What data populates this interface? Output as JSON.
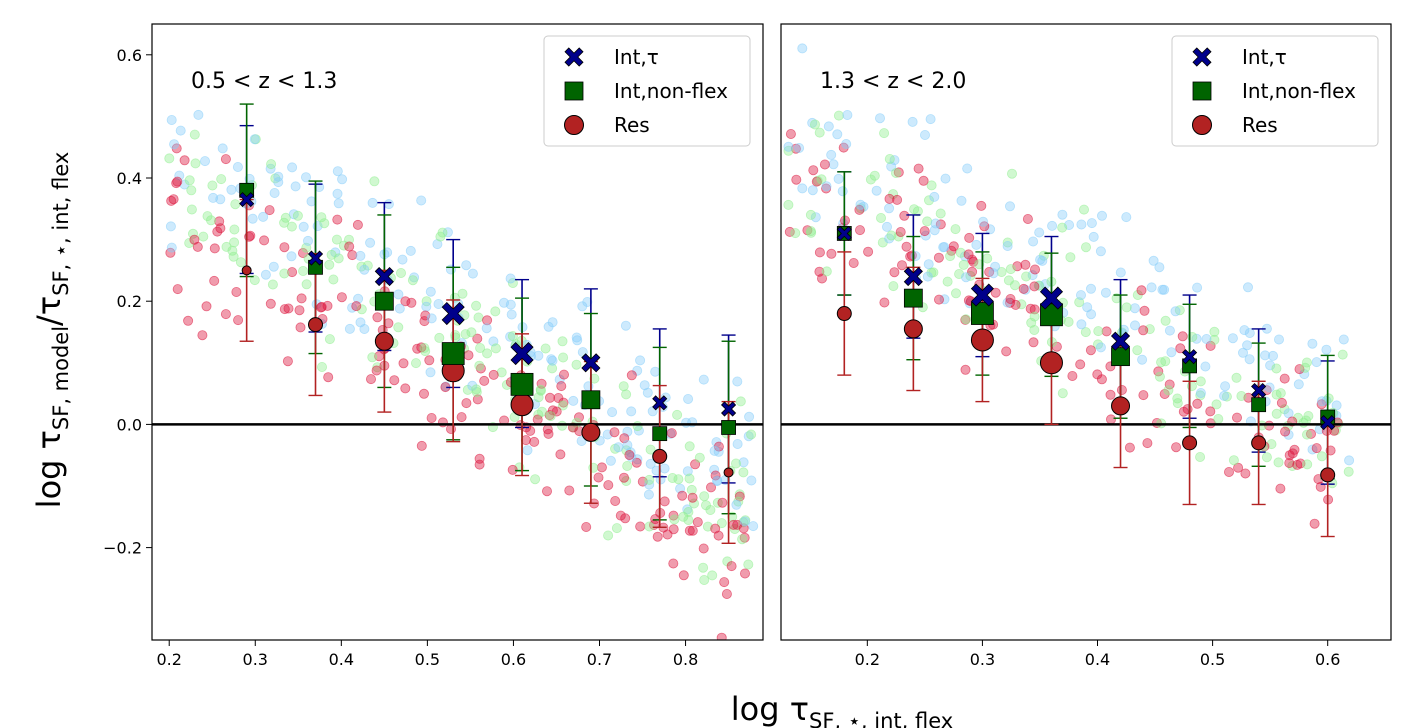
{
  "figure": {
    "ylabel_main": "log τ",
    "ylabel_sub": "SF, model",
    "ylabel_mid": "/τ",
    "ylabel_sub2": "SF, ⋆, int, flex",
    "xlabel_main": "log τ",
    "xlabel_sub": "SF, ⋆, int, flex"
  },
  "colors": {
    "int_tau": "#00008b",
    "int_nonflex": "#006400",
    "res": "#b22222",
    "scatter_blue": "#87cefa",
    "scatter_green": "#90ee90",
    "scatter_red": "#dc143c"
  },
  "chart_data": [
    {
      "type": "scatter",
      "annotation": "0.5 < z < 1.3",
      "xlim": [
        0.18,
        0.89
      ],
      "ylim": [
        -0.35,
        0.65
      ],
      "xticks": [
        0.2,
        0.3,
        0.4,
        0.5,
        0.6,
        0.7,
        0.8
      ],
      "xtick_labels": [
        "0.2",
        "0.3",
        "0.4",
        "0.5",
        "0.6",
        "0.7",
        "0.8"
      ],
      "yticks": [
        -0.2,
        0.0,
        0.2,
        0.4,
        0.6
      ],
      "ytick_labels": [
        "−0.2",
        "0.0",
        "0.2",
        "0.4",
        "0.6"
      ],
      "hline": 0.0,
      "legend": [
        "Int,τ",
        "Int,non-flex",
        "Res"
      ],
      "legend_loc": "upper right",
      "scatter_cloud": {
        "x_range": [
          0.2,
          0.88
        ],
        "y_intercept": 0.55,
        "slope": -0.78,
        "spread": 0.07,
        "n": 500
      },
      "series": [
        {
          "name": "Int,τ",
          "marker": "X",
          "x": [
            0.29,
            0.37,
            0.45,
            0.53,
            0.61,
            0.69,
            0.77,
            0.85
          ],
          "y": [
            0.365,
            0.27,
            0.24,
            0.18,
            0.115,
            0.1,
            0.035,
            0.025
          ],
          "err": [
            0.12,
            0.12,
            0.12,
            0.12,
            0.12,
            0.12,
            0.12,
            0.12
          ],
          "size": [
            1,
            1,
            2,
            3,
            3,
            2,
            1,
            1
          ]
        },
        {
          "name": "Int,non-flex",
          "marker": "s",
          "x": [
            0.29,
            0.37,
            0.45,
            0.53,
            0.61,
            0.69,
            0.77,
            0.85
          ],
          "y": [
            0.38,
            0.255,
            0.2,
            0.115,
            0.065,
            0.04,
            -0.015,
            -0.005
          ],
          "err": [
            0.14,
            0.14,
            0.14,
            0.14,
            0.14,
            0.14,
            0.14,
            0.14
          ],
          "size": [
            1,
            1,
            2,
            3,
            3,
            2,
            1,
            1
          ]
        },
        {
          "name": "Res",
          "marker": "o",
          "x": [
            0.29,
            0.37,
            0.45,
            0.53,
            0.61,
            0.69,
            0.77,
            0.85
          ],
          "y": [
            0.25,
            0.162,
            0.135,
            0.087,
            0.032,
            -0.013,
            -0.052,
            -0.078
          ],
          "err": [
            0.115,
            0.115,
            0.115,
            0.115,
            0.115,
            0.115,
            0.115,
            0.115
          ],
          "size": [
            0,
            1,
            2,
            3,
            3,
            2,
            1,
            0
          ]
        }
      ]
    },
    {
      "type": "scatter",
      "annotation": "1.3 < z < 2.0",
      "xlim": [
        0.125,
        0.655
      ],
      "ylim": [
        -0.35,
        0.65
      ],
      "xticks": [
        0.2,
        0.3,
        0.4,
        0.5,
        0.6
      ],
      "xtick_labels": [
        "0.2",
        "0.3",
        "0.4",
        "0.5",
        "0.6"
      ],
      "yticks": [],
      "ytick_labels": [],
      "hline": 0.0,
      "legend": [
        "Int,τ",
        "Int,non-flex",
        "Res"
      ],
      "legend_loc": "upper right",
      "scatter_cloud": {
        "x_range": [
          0.13,
          0.62
        ],
        "y_intercept": 0.53,
        "slope": -0.88,
        "spread": 0.065,
        "n": 400
      },
      "series": [
        {
          "name": "Int,τ",
          "marker": "X",
          "x": [
            0.18,
            0.24,
            0.3,
            0.36,
            0.42,
            0.48,
            0.54,
            0.6
          ],
          "y": [
            0.31,
            0.24,
            0.21,
            0.205,
            0.135,
            0.11,
            0.055,
            0.003
          ],
          "err": [
            0.1,
            0.1,
            0.1,
            0.1,
            0.1,
            0.1,
            0.1,
            0.1
          ],
          "size": [
            1,
            2,
            3,
            3,
            2,
            1,
            1,
            1
          ]
        },
        {
          "name": "Int,non-flex",
          "marker": "s",
          "x": [
            0.18,
            0.24,
            0.3,
            0.36,
            0.42,
            0.48,
            0.54,
            0.6
          ],
          "y": [
            0.31,
            0.205,
            0.18,
            0.178,
            0.11,
            0.095,
            0.032,
            0.012
          ],
          "err": [
            0.1,
            0.1,
            0.1,
            0.1,
            0.1,
            0.1,
            0.1,
            0.1
          ],
          "size": [
            1,
            2,
            3,
            3,
            2,
            1,
            1,
            1
          ]
        },
        {
          "name": "Res",
          "marker": "o",
          "x": [
            0.18,
            0.24,
            0.3,
            0.36,
            0.42,
            0.48,
            0.54,
            0.6
          ],
          "y": [
            0.18,
            0.155,
            0.137,
            0.1,
            0.03,
            -0.03,
            -0.03,
            -0.082
          ],
          "err": [
            0.1,
            0.1,
            0.1,
            0.1,
            0.1,
            0.1,
            0.1,
            0.1
          ],
          "size": [
            1,
            2,
            3,
            3,
            2,
            1,
            1,
            1
          ]
        }
      ]
    }
  ]
}
